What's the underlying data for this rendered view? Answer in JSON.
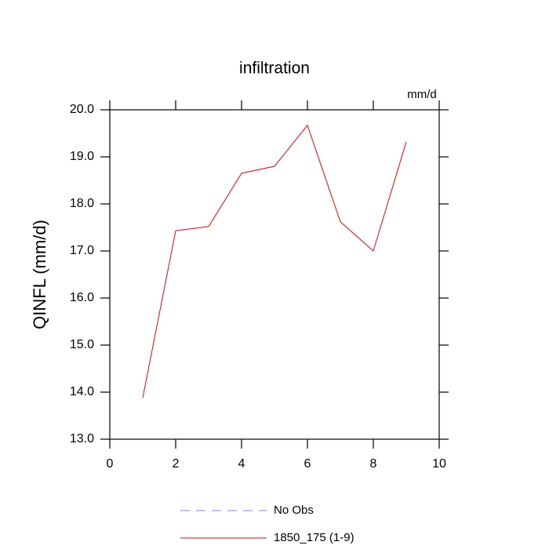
{
  "chart_data": {
    "type": "line",
    "title": "infiltration",
    "units": "mm/d",
    "y_label": "QINFL  (mm/d)",
    "x": [
      1,
      2,
      3,
      4,
      5,
      6,
      7,
      8,
      9
    ],
    "series": [
      {
        "name": "No Obs",
        "color": "#8080ff",
        "dash": true,
        "values": [
          null,
          null,
          null,
          null,
          null,
          null,
          null,
          null,
          null
        ]
      },
      {
        "name": "1850_175 (1-9)",
        "color": "#ff0000",
        "dash": false,
        "values": [
          13.88,
          17.43,
          17.52,
          18.65,
          18.8,
          19.67,
          17.62,
          17.0,
          19.32
        ]
      }
    ],
    "xlim": [
      0,
      10
    ],
    "xticks": [
      0,
      2,
      4,
      6,
      8,
      10
    ],
    "ylim": [
      13,
      20
    ],
    "yticks": [
      {
        "value": 13,
        "label": "13.0"
      },
      {
        "value": 14,
        "label": "14.0"
      },
      {
        "value": 15,
        "label": "15.0"
      },
      {
        "value": 16,
        "label": "16.0"
      },
      {
        "value": 17,
        "label": "17.0"
      },
      {
        "value": 18,
        "label": "18.0"
      },
      {
        "value": 19,
        "label": "19.0"
      },
      {
        "value": 20,
        "label": "20.0"
      }
    ]
  }
}
